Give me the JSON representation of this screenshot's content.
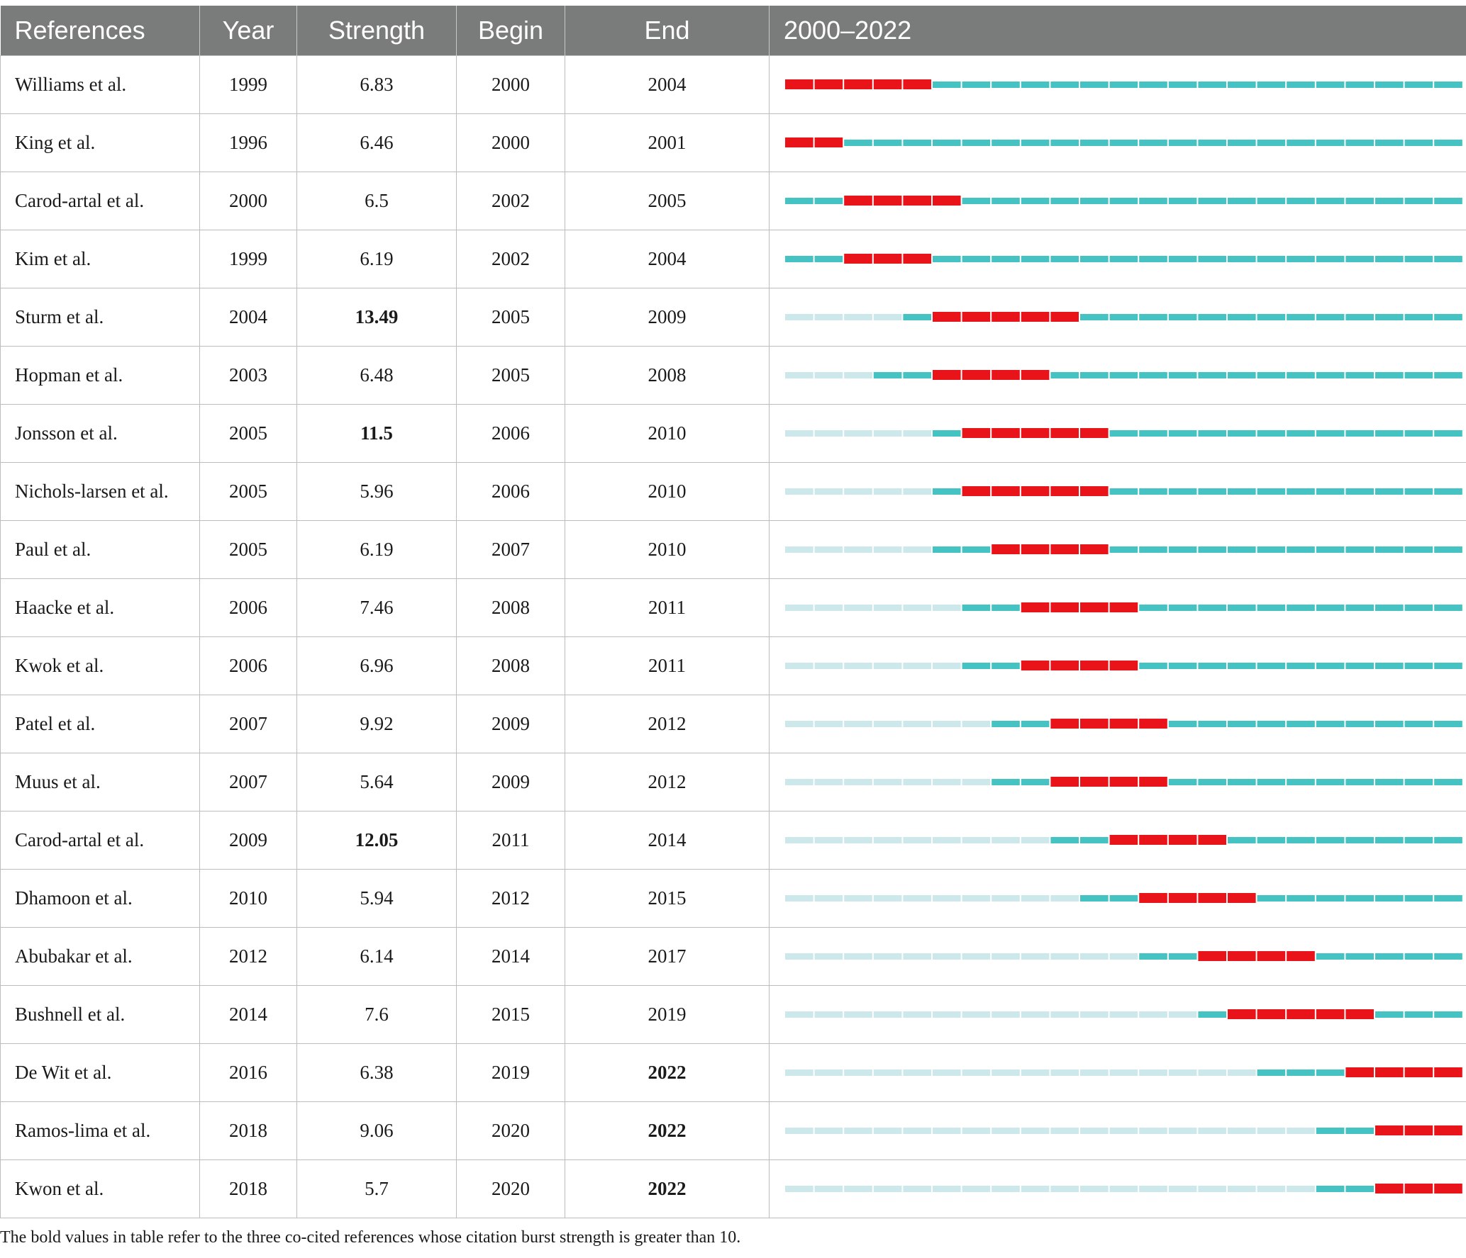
{
  "table": {
    "headers": [
      "References",
      "Year",
      "Strength",
      "Begin",
      "End",
      "2000–2022"
    ],
    "range": [
      2000,
      2022
    ],
    "colors": {
      "burst": "#e8141a",
      "active": "#45c2c2",
      "inactive": "#cce8ea",
      "header_bg": "#7a7c7b"
    },
    "rows": [
      {
        "ref": "Williams et al.",
        "year": "1999",
        "strength": "6.83",
        "begin": "2000",
        "end": "2004",
        "strength_bold": false,
        "end_bold": false
      },
      {
        "ref": "King et al.",
        "year": "1996",
        "strength": "6.46",
        "begin": "2000",
        "end": "2001",
        "strength_bold": false,
        "end_bold": false
      },
      {
        "ref": "Carod-artal et al.",
        "year": "2000",
        "strength": "6.5",
        "begin": "2002",
        "end": "2005",
        "strength_bold": false,
        "end_bold": false
      },
      {
        "ref": "Kim et al.",
        "year": "1999",
        "strength": "6.19",
        "begin": "2002",
        "end": "2004",
        "strength_bold": false,
        "end_bold": false
      },
      {
        "ref": "Sturm et al.",
        "year": "2004",
        "strength": "13.49",
        "begin": "2005",
        "end": "2009",
        "strength_bold": true,
        "end_bold": false
      },
      {
        "ref": "Hopman et al.",
        "year": "2003",
        "strength": "6.48",
        "begin": "2005",
        "end": "2008",
        "strength_bold": false,
        "end_bold": false
      },
      {
        "ref": "Jonsson et al.",
        "year": "2005",
        "strength": "11.5",
        "begin": "2006",
        "end": "2010",
        "strength_bold": true,
        "end_bold": false
      },
      {
        "ref": "Nichols-larsen et al.",
        "year": "2005",
        "strength": "5.96",
        "begin": "2006",
        "end": "2010",
        "strength_bold": false,
        "end_bold": false
      },
      {
        "ref": "Paul et al.",
        "year": "2005",
        "strength": "6.19",
        "begin": "2007",
        "end": "2010",
        "strength_bold": false,
        "end_bold": false
      },
      {
        "ref": "Haacke et al.",
        "year": "2006",
        "strength": "7.46",
        "begin": "2008",
        "end": "2011",
        "strength_bold": false,
        "end_bold": false
      },
      {
        "ref": "Kwok et al.",
        "year": "2006",
        "strength": "6.96",
        "begin": "2008",
        "end": "2011",
        "strength_bold": false,
        "end_bold": false
      },
      {
        "ref": "Patel et al.",
        "year": "2007",
        "strength": "9.92",
        "begin": "2009",
        "end": "2012",
        "strength_bold": false,
        "end_bold": false
      },
      {
        "ref": "Muus et al.",
        "year": "2007",
        "strength": "5.64",
        "begin": "2009",
        "end": "2012",
        "strength_bold": false,
        "end_bold": false
      },
      {
        "ref": "Carod-artal et al.",
        "year": "2009",
        "strength": "12.05",
        "begin": "2011",
        "end": "2014",
        "strength_bold": true,
        "end_bold": false
      },
      {
        "ref": "Dhamoon et al.",
        "year": "2010",
        "strength": "5.94",
        "begin": "2012",
        "end": "2015",
        "strength_bold": false,
        "end_bold": false
      },
      {
        "ref": "Abubakar et al.",
        "year": "2012",
        "strength": "6.14",
        "begin": "2014",
        "end": "2017",
        "strength_bold": false,
        "end_bold": false
      },
      {
        "ref": "Bushnell et al.",
        "year": "2014",
        "strength": "7.6",
        "begin": "2015",
        "end": "2019",
        "strength_bold": false,
        "end_bold": false
      },
      {
        "ref": "De Wit et al.",
        "year": "2016",
        "strength": "6.38",
        "begin": "2019",
        "end": "2022",
        "strength_bold": false,
        "end_bold": true
      },
      {
        "ref": "Ramos-lima et al.",
        "year": "2018",
        "strength": "9.06",
        "begin": "2020",
        "end": "2022",
        "strength_bold": false,
        "end_bold": true
      },
      {
        "ref": "Kwon et al.",
        "year": "2018",
        "strength": "5.7",
        "begin": "2020",
        "end": "2022",
        "strength_bold": false,
        "end_bold": true
      }
    ]
  },
  "caption": "The bold values in table  refer to the three co-cited references whose citation burst strength is greater than 10."
}
